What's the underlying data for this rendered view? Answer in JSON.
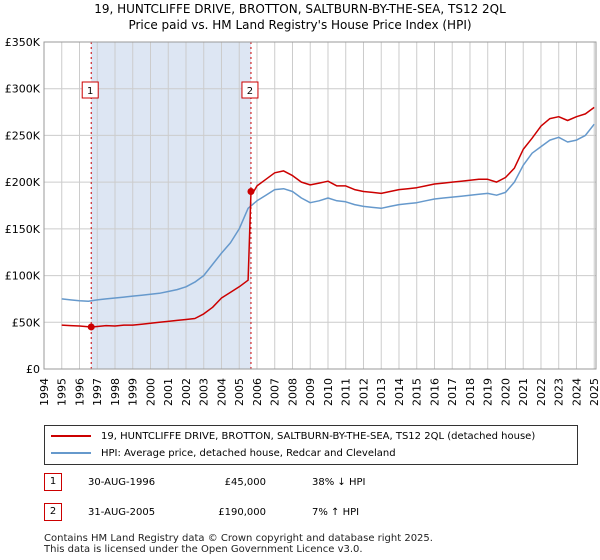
{
  "title_line1": "19, HUNTCLIFFE DRIVE, BROTTON, SALTBURN-BY-THE-SEA, TS12 2QL",
  "title_line2": "Price paid vs. HM Land Registry's House Price Index (HPI)",
  "colors": {
    "property": "#cc0000",
    "hpi": "#6699cc",
    "shade": "#dde6f3",
    "grid": "#cccccc"
  },
  "legend": [
    {
      "label": "19, HUNTCLIFFE DRIVE, BROTTON, SALTBURN-BY-THE-SEA, TS12 2QL (detached house)"
    },
    {
      "label": "HPI: Average price, detached house, Redcar and Cleveland"
    }
  ],
  "transactions": [
    {
      "id": "1",
      "date": "30-AUG-1996",
      "price": "£45,000",
      "hpi": "38% ↓ HPI"
    },
    {
      "id": "2",
      "date": "31-AUG-2005",
      "price": "£190,000",
      "hpi": "7% ↑ HPI"
    }
  ],
  "footer": {
    "line1": "Contains HM Land Registry data © Crown copyright and database right 2025.",
    "line2": "This data is licensed under the Open Government Licence v3.0."
  },
  "chart_data": {
    "type": "line",
    "title": "19, HUNTCLIFFE DRIVE, BROTTON, SALTBURN-BY-THE-SEA, TS12 2QL — Price paid vs. HM Land Registry's House Price Index (HPI)",
    "xlabel": "",
    "ylabel": "",
    "xlim": [
      1994,
      2025.1
    ],
    "ylim": [
      0,
      350000
    ],
    "y_ticks": [
      0,
      50000,
      100000,
      150000,
      200000,
      250000,
      300000,
      350000
    ],
    "y_tick_labels": [
      "£0",
      "£50K",
      "£100K",
      "£150K",
      "£200K",
      "£250K",
      "£300K",
      "£350K"
    ],
    "x_ticks": [
      1994,
      1995,
      1996,
      1997,
      1998,
      1999,
      2000,
      2001,
      2002,
      2003,
      2004,
      2005,
      2006,
      2007,
      2008,
      2009,
      2010,
      2011,
      2012,
      2013,
      2014,
      2015,
      2016,
      2017,
      2018,
      2019,
      2020,
      2021,
      2022,
      2023,
      2024,
      2025
    ],
    "x_tick_labels": [
      "1994",
      "1995",
      "1996",
      "1997",
      "1998",
      "1999",
      "2000",
      "2001",
      "2002",
      "2003",
      "2004",
      "2005",
      "2006",
      "2007",
      "2008",
      "2009",
      "2010",
      "2011",
      "2012",
      "2013",
      "2014",
      "2015",
      "2016",
      "2017",
      "2018",
      "2019",
      "2020",
      "2021",
      "2022",
      "2023",
      "2024",
      "2025"
    ],
    "grid": true,
    "shaded_ranges": [
      [
        1996.66,
        2005.66
      ]
    ],
    "series": [
      {
        "name": "19, HUNTCLIFFE DRIVE, BROTTON, SALTBURN-BY-THE-SEA, TS12 2QL (detached house)",
        "x": [
          1995,
          1995.5,
          1996,
          1996.66,
          1997,
          1997.5,
          1998,
          1998.5,
          1999,
          1999.5,
          2000,
          2000.5,
          2001,
          2001.5,
          2002,
          2002.5,
          2003,
          2003.5,
          2004,
          2004.5,
          2005,
          2005.5,
          2005.66,
          2005.75,
          2006,
          2006.5,
          2007,
          2007.5,
          2008,
          2008.5,
          2009,
          2009.5,
          2010,
          2010.5,
          2011,
          2011.5,
          2012,
          2012.5,
          2013,
          2013.5,
          2014,
          2014.5,
          2015,
          2015.5,
          2016,
          2016.5,
          2017,
          2017.5,
          2018,
          2018.5,
          2019,
          2019.5,
          2020,
          2020.5,
          2021,
          2021.5,
          2022,
          2022.5,
          2023,
          2023.5,
          2024,
          2024.5,
          2025
        ],
        "y": [
          47000,
          46500,
          46000,
          45000,
          45500,
          46500,
          46000,
          47000,
          47000,
          48000,
          49000,
          50000,
          51000,
          52000,
          53000,
          54000,
          59000,
          66000,
          76000,
          82000,
          88000,
          95000,
          190000,
          188000,
          196000,
          203000,
          210000,
          212000,
          207000,
          200000,
          197000,
          199000,
          201000,
          196000,
          196000,
          192000,
          190000,
          189000,
          188000,
          190000,
          192000,
          193000,
          194000,
          196000,
          198000,
          199000,
          200000,
          201000,
          202000,
          203000,
          203000,
          200000,
          205000,
          215000,
          235000,
          247000,
          260000,
          268000,
          270000,
          266000,
          270000,
          273000,
          280000
        ]
      },
      {
        "name": "HPI: Average price, detached house, Redcar and Cleveland",
        "x": [
          1995,
          1995.5,
          1996,
          1996.5,
          1997,
          1997.5,
          1998,
          1998.5,
          1999,
          1999.5,
          2000,
          2000.5,
          2001,
          2001.5,
          2002,
          2002.5,
          2003,
          2003.5,
          2004,
          2004.5,
          2005,
          2005.5,
          2006,
          2006.5,
          2007,
          2007.5,
          2008,
          2008.5,
          2009,
          2009.5,
          2010,
          2010.5,
          2011,
          2011.5,
          2012,
          2012.5,
          2013,
          2013.5,
          2014,
          2014.5,
          2015,
          2015.5,
          2016,
          2016.5,
          2017,
          2017.5,
          2018,
          2018.5,
          2019,
          2019.5,
          2020,
          2020.5,
          2021,
          2021.5,
          2022,
          2022.5,
          2023,
          2023.5,
          2024,
          2024.5,
          2025
        ],
        "y": [
          75000,
          74000,
          73000,
          72500,
          74000,
          75000,
          76000,
          77000,
          78000,
          79000,
          80000,
          81000,
          83000,
          85000,
          88000,
          93000,
          100000,
          112000,
          124000,
          135000,
          150000,
          172000,
          180000,
          186000,
          192000,
          193000,
          190000,
          183000,
          178000,
          180000,
          183000,
          180000,
          179000,
          176000,
          174000,
          173000,
          172000,
          174000,
          176000,
          177000,
          178000,
          180000,
          182000,
          183000,
          184000,
          185000,
          186000,
          187000,
          188000,
          186000,
          189000,
          200000,
          218000,
          231000,
          238000,
          245000,
          248000,
          243000,
          245000,
          250000,
          262000
        ]
      }
    ],
    "markers": [
      {
        "id": "1",
        "x": 1996.66,
        "y": 45000
      },
      {
        "id": "2",
        "x": 2005.66,
        "y": 190000
      }
    ]
  }
}
